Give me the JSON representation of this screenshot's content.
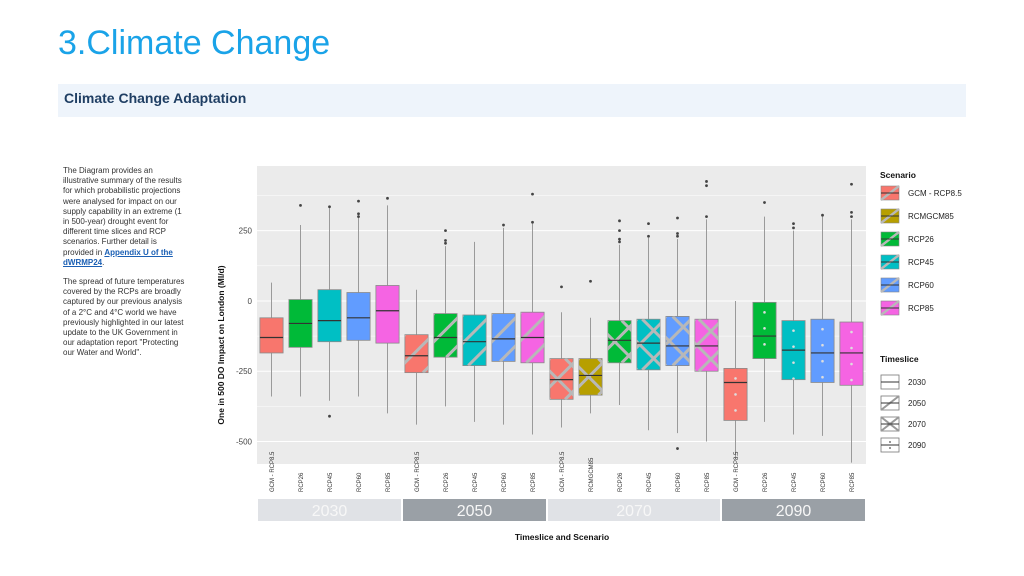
{
  "page": {
    "title": "3.Climate Change",
    "section_heading": "Climate Change Adaptation",
    "body_p1": "The Diagram provides an illustrative summary of the results for which probabilistic projections were analysed for impact on our supply capability in an extreme (1 in 500-year) drought event for different time slices and RCP scenarios. Further detail is provided in",
    "body_link": "Appendix U of the dWRMP24",
    "body_p1_end": ".",
    "body_p2": "The spread of future temperatures covered by the RCPs are broadly captured by our previous analysis of a 2°C and 4°C world we have previously highlighted in our latest update to the UK Government in our adaptation report \"Protecting our Water and World\"."
  },
  "chart_data": {
    "type": "boxplot",
    "ylabel": "One in 500 DO Impact on London (Ml/d)",
    "xlabel": "Timeslice and Scenario",
    "ylim": [
      -580,
      480
    ],
    "yticks": [
      250,
      0,
      -250,
      -500
    ],
    "grid": true,
    "legend_placement": "right",
    "legend_scenario_title": "Scenario",
    "legend_timeslice_title": "Timeslice",
    "scenarios": [
      {
        "name": "GCM - RCP8.5",
        "color": "#f8766d"
      },
      {
        "name": "RCMGCM85",
        "color": "#b79f00"
      },
      {
        "name": "RCP26",
        "color": "#00ba38"
      },
      {
        "name": "RCP45",
        "color": "#00bfc4"
      },
      {
        "name": "RCP60",
        "color": "#619cff"
      },
      {
        "name": "RCP85",
        "color": "#f564e3"
      }
    ],
    "timeslices": [
      {
        "name": "2030",
        "pattern": "none"
      },
      {
        "name": "2050",
        "pattern": "single"
      },
      {
        "name": "2070",
        "pattern": "cross"
      },
      {
        "name": "2090",
        "pattern": "dots"
      }
    ],
    "boxes": [
      {
        "timeslice": "2030",
        "scenario": "GCM - RCP8.5",
        "label": "GCM - RCP8.5",
        "whisker_low": -340,
        "q1": -185,
        "median": -130,
        "q3": -60,
        "whisker_high": 65,
        "outliers": []
      },
      {
        "timeslice": "2030",
        "scenario": "RCP26",
        "label": "RCP26",
        "whisker_low": -340,
        "q1": -165,
        "median": -80,
        "q3": 5,
        "whisker_high": 270,
        "outliers": [
          340
        ]
      },
      {
        "timeslice": "2030",
        "scenario": "RCP45",
        "label": "RCP45",
        "whisker_low": -355,
        "q1": -145,
        "median": -70,
        "q3": 40,
        "whisker_high": 330,
        "outliers": [
          -410,
          335
        ]
      },
      {
        "timeslice": "2030",
        "scenario": "RCP60",
        "label": "RCP60",
        "whisker_low": -340,
        "q1": -140,
        "median": -60,
        "q3": 30,
        "whisker_high": 295,
        "outliers": [
          300,
          310,
          355
        ]
      },
      {
        "timeslice": "2030",
        "scenario": "RCP85",
        "label": "RCP85",
        "whisker_low": -400,
        "q1": -150,
        "median": -35,
        "q3": 55,
        "whisker_high": 340,
        "outliers": [
          365
        ]
      },
      {
        "timeslice": "2050",
        "scenario": "GCM - RCP8.5",
        "label": "GCM - RCP8.5",
        "whisker_low": -440,
        "q1": -255,
        "median": -195,
        "q3": -120,
        "whisker_high": 40,
        "outliers": []
      },
      {
        "timeslice": "2050",
        "scenario": "RCP26",
        "label": "RCP26",
        "whisker_low": -375,
        "q1": -200,
        "median": -130,
        "q3": -45,
        "whisker_high": 195,
        "outliers": [
          205,
          215,
          250
        ]
      },
      {
        "timeslice": "2050",
        "scenario": "RCP45",
        "label": "RCP45",
        "whisker_low": -430,
        "q1": -230,
        "median": -145,
        "q3": -50,
        "whisker_high": 210,
        "outliers": []
      },
      {
        "timeslice": "2050",
        "scenario": "RCP60",
        "label": "RCP60",
        "whisker_low": -440,
        "q1": -215,
        "median": -135,
        "q3": -45,
        "whisker_high": 260,
        "outliers": [
          270
        ]
      },
      {
        "timeslice": "2050",
        "scenario": "RCP85",
        "label": "RCP85",
        "whisker_low": -475,
        "q1": -220,
        "median": -130,
        "q3": -40,
        "whisker_high": 275,
        "outliers": [
          280,
          380
        ]
      },
      {
        "timeslice": "2070",
        "scenario": "GCM - RCP8.5",
        "label": "GCM - RCP8.5",
        "whisker_low": -450,
        "q1": -350,
        "median": -280,
        "q3": -205,
        "whisker_high": -40,
        "outliers": [
          50
        ]
      },
      {
        "timeslice": "2070",
        "scenario": "RCMGCM85",
        "label": "RCMGCM85",
        "whisker_low": -400,
        "q1": -335,
        "median": -265,
        "q3": -205,
        "whisker_high": -60,
        "outliers": [
          70
        ]
      },
      {
        "timeslice": "2070",
        "scenario": "RCP26",
        "label": "RCP26",
        "whisker_low": -370,
        "q1": -220,
        "median": -140,
        "q3": -70,
        "whisker_high": 200,
        "outliers": [
          210,
          220,
          250,
          285
        ]
      },
      {
        "timeslice": "2070",
        "scenario": "RCP45",
        "label": "RCP45",
        "whisker_low": -460,
        "q1": -245,
        "median": -150,
        "q3": -65,
        "whisker_high": 225,
        "outliers": [
          230,
          275
        ]
      },
      {
        "timeslice": "2070",
        "scenario": "RCP60",
        "label": "RCP60",
        "whisker_low": -470,
        "q1": -230,
        "median": -160,
        "q3": -55,
        "whisker_high": 220,
        "outliers": [
          -525,
          230,
          240,
          295
        ]
      },
      {
        "timeslice": "2070",
        "scenario": "RCP85",
        "label": "RCP85",
        "whisker_low": -500,
        "q1": -250,
        "median": -160,
        "q3": -65,
        "whisker_high": 290,
        "outliers": [
          300,
          410,
          425
        ]
      },
      {
        "timeslice": "2090",
        "scenario": "GCM - RCP8.5",
        "label": "GCM - RCP8.5",
        "whisker_low": -560,
        "q1": -425,
        "median": -290,
        "q3": -240,
        "whisker_high": 0,
        "outliers": []
      },
      {
        "timeslice": "2090",
        "scenario": "RCP26",
        "label": "RCP26",
        "whisker_low": -430,
        "q1": -205,
        "median": -125,
        "q3": -5,
        "whisker_high": 300,
        "outliers": [
          350
        ]
      },
      {
        "timeslice": "2090",
        "scenario": "RCP45",
        "label": "RCP45",
        "whisker_low": -475,
        "q1": -280,
        "median": -175,
        "q3": -70,
        "whisker_high": 250,
        "outliers": [
          260,
          275
        ]
      },
      {
        "timeslice": "2090",
        "scenario": "RCP60",
        "label": "RCP60",
        "whisker_low": -480,
        "q1": -290,
        "median": -185,
        "q3": -65,
        "whisker_high": 300,
        "outliers": [
          305
        ]
      },
      {
        "timeslice": "2090",
        "scenario": "RCP85",
        "label": "RCP85",
        "whisker_low": -575,
        "q1": -300,
        "median": -185,
        "q3": -75,
        "whisker_high": 290,
        "outliers": [
          300,
          315,
          415
        ]
      }
    ]
  }
}
